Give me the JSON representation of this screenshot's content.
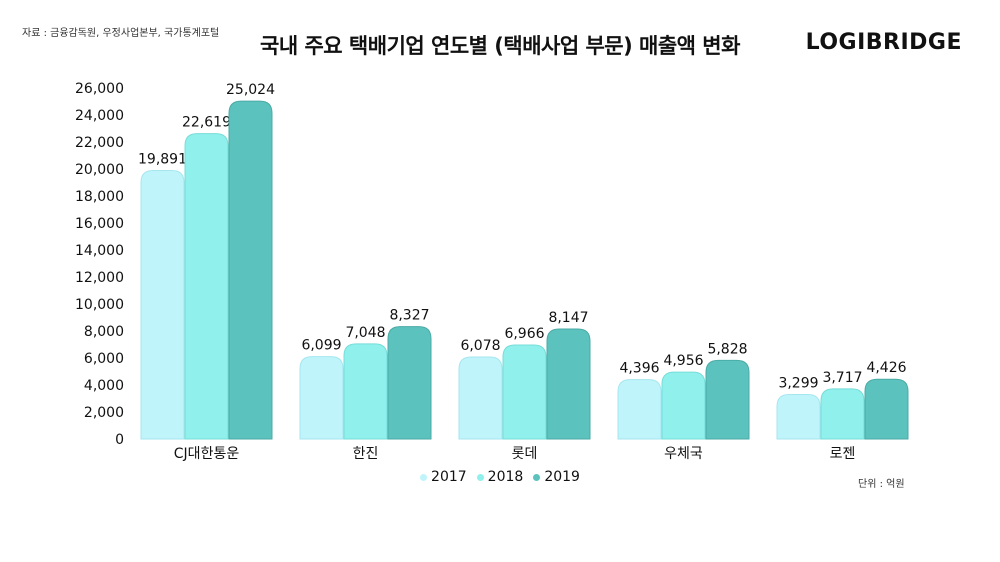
{
  "source_text": "자료 : 금융감독원, 우정사업본부, 국가통계포털",
  "title": "국내 주요 택배기업 연도별 (택배사업 부문) 매출액 변화",
  "brand": "LOGIBRIDGE",
  "unit_text": "단위 : 억원",
  "colors": {
    "s2017": "#bff4fb",
    "s2018": "#8ff0ec",
    "s2019": "#5cc2bd"
  },
  "chart_data": {
    "type": "bar",
    "title": "국내 주요 택배기업 연도별 (택배사업 부문) 매출액 변화",
    "xlabel": "",
    "ylabel": "",
    "ylim": [
      0,
      26000
    ],
    "yticks": [
      0,
      2000,
      4000,
      6000,
      8000,
      10000,
      12000,
      14000,
      16000,
      18000,
      20000,
      22000,
      24000,
      26000
    ],
    "ytick_labels": [
      "0",
      "2,000",
      "4,000",
      "6,000",
      "8,000",
      "10,000",
      "12,000",
      "14,000",
      "16,000",
      "18,000",
      "20,000",
      "22,000",
      "24,000",
      "26,000"
    ],
    "categories": [
      "CJ대한통운",
      "한진",
      "롯데",
      "우체국",
      "로젠"
    ],
    "series": [
      {
        "name": "2017",
        "values": [
          19891,
          6099,
          6078,
          4396,
          3299
        ],
        "labels": [
          "19,891",
          "6,099",
          "6,078",
          "4,396",
          "3,299"
        ]
      },
      {
        "name": "2018",
        "values": [
          22619,
          7048,
          6966,
          4956,
          3717
        ],
        "labels": [
          "22,619",
          "7,048",
          "6,966",
          "4,956",
          "3,717"
        ]
      },
      {
        "name": "2019",
        "values": [
          25024,
          8327,
          8147,
          5828,
          4426
        ],
        "labels": [
          "25,024",
          "8,327",
          "8,147",
          "5,828",
          "4,426"
        ]
      }
    ],
    "legend_position": "bottom"
  }
}
